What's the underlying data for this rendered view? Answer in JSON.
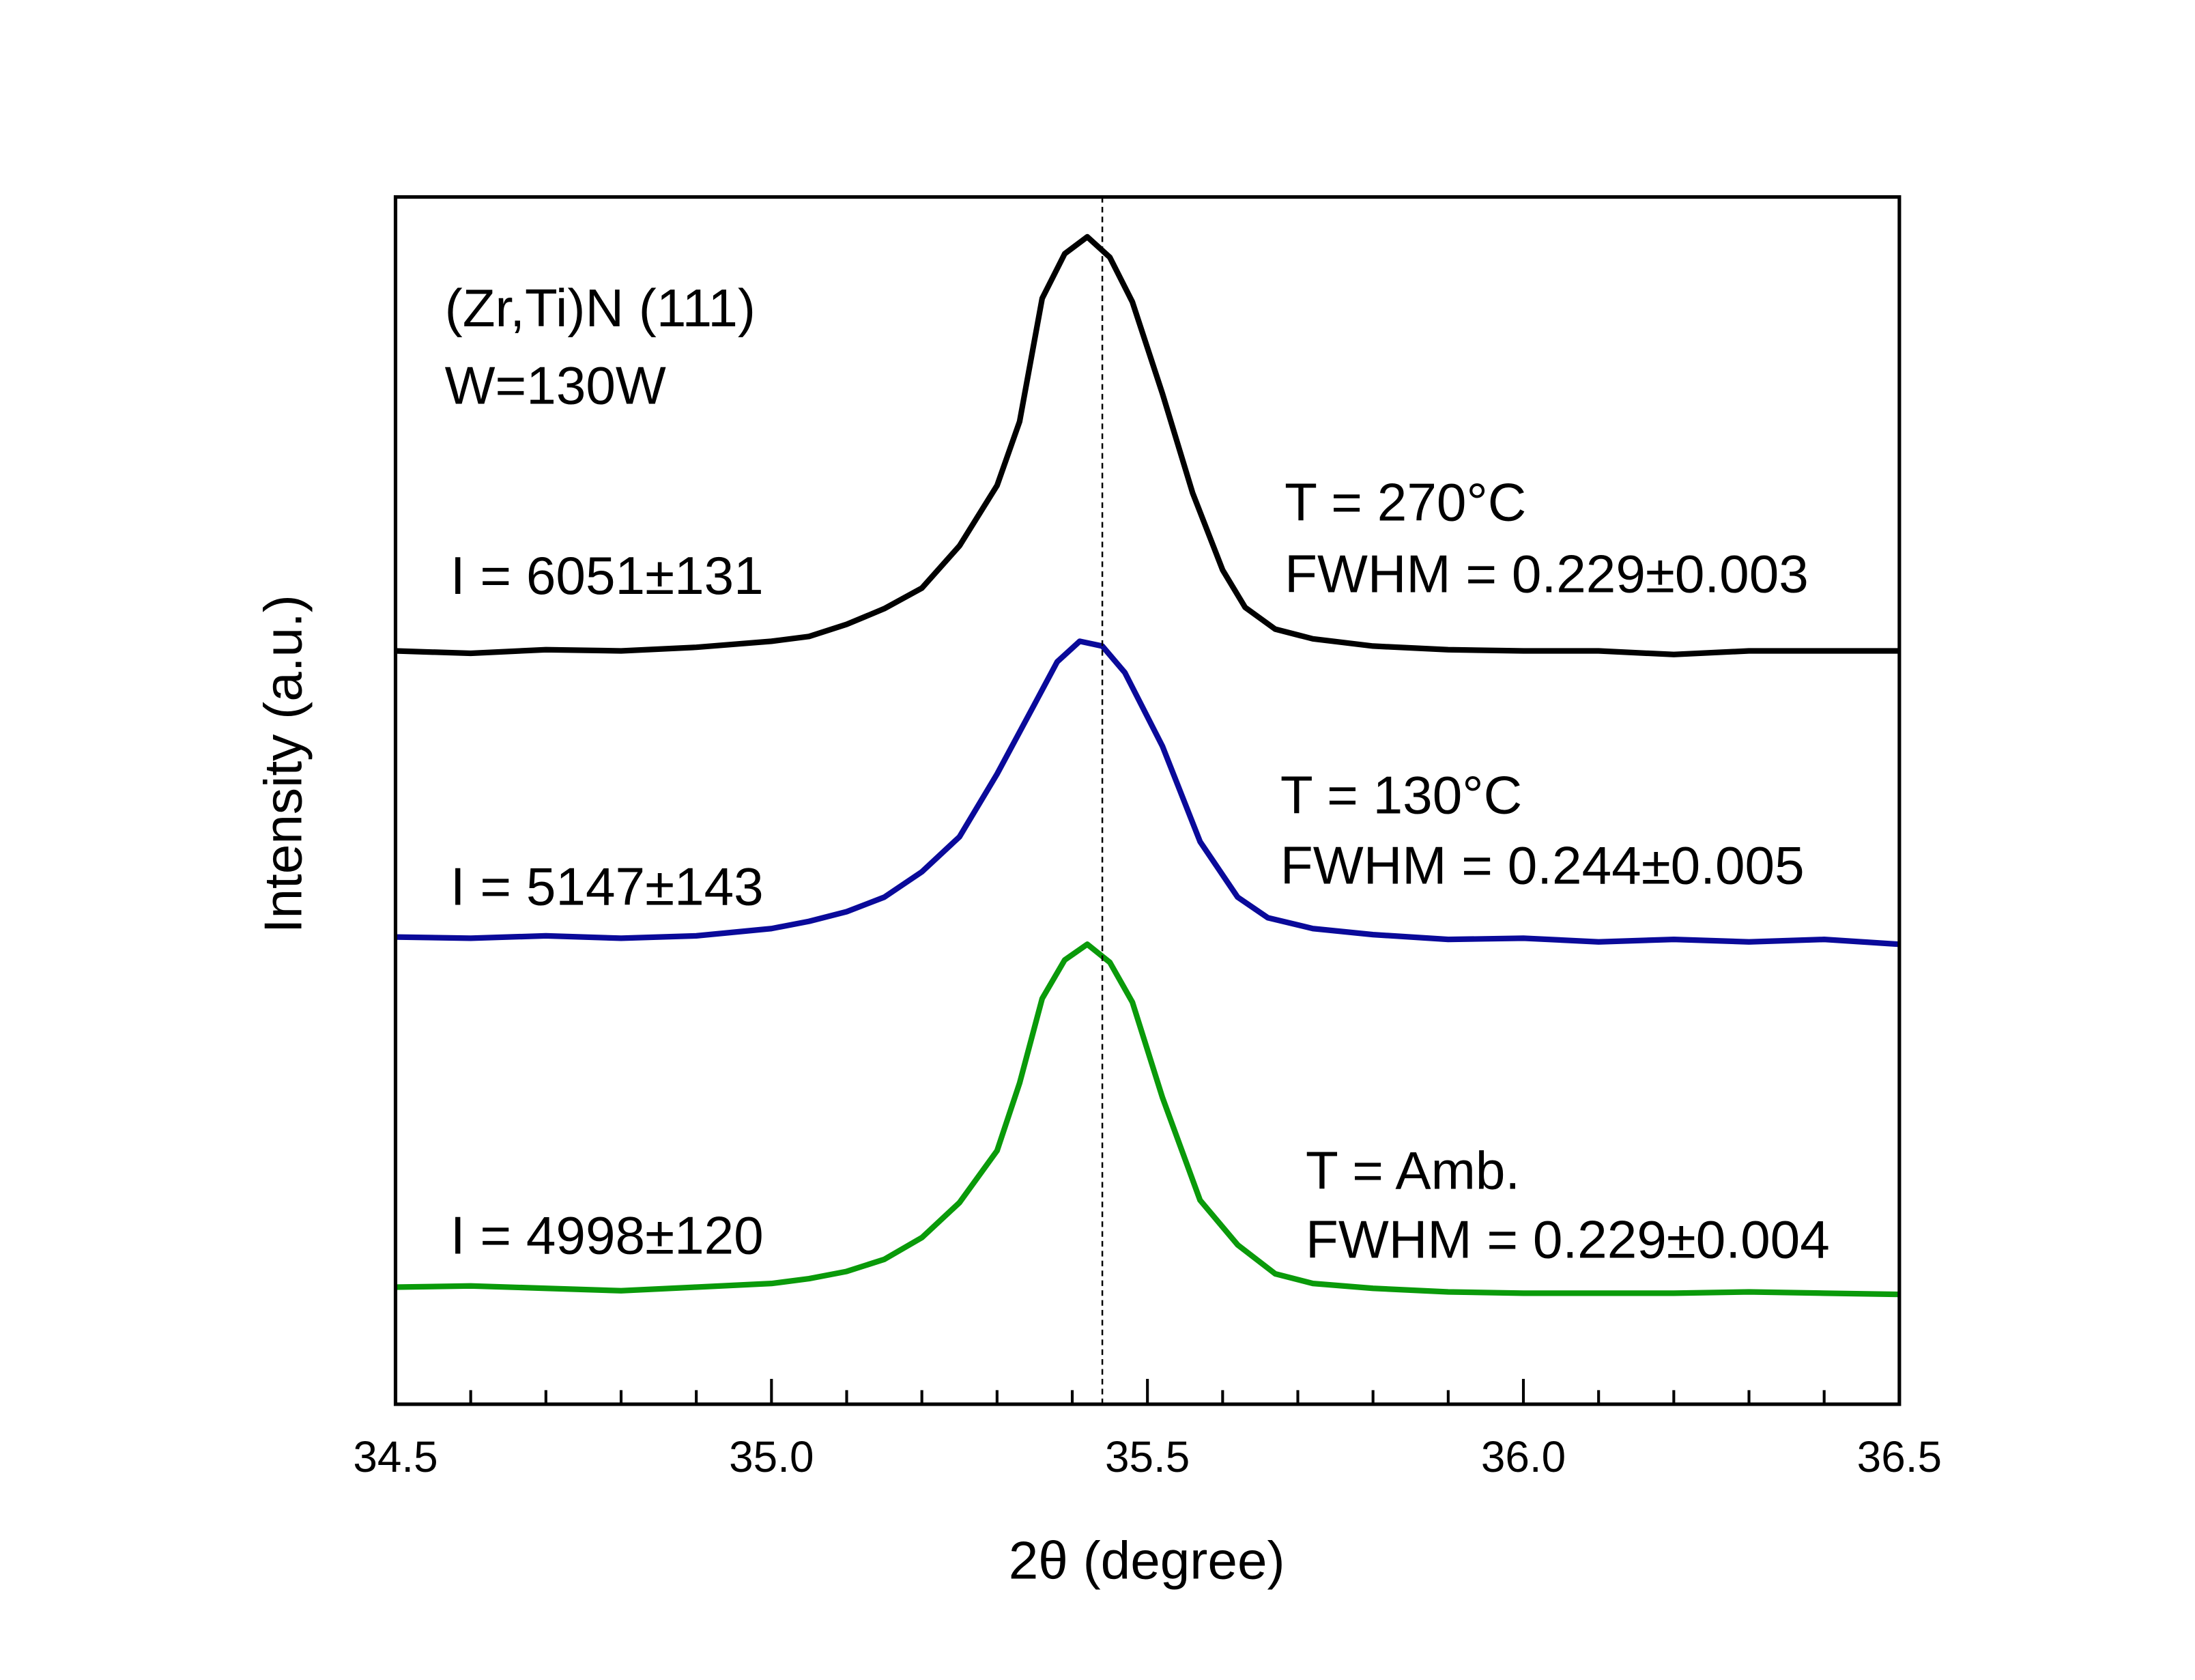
{
  "chart_data": {
    "type": "line",
    "title": "",
    "xlabel": "2θ (degree)",
    "ylabel": "Intensity (a.u.)",
    "xlim": [
      34.5,
      36.5
    ],
    "ylim": [
      0,
      100
    ],
    "xticks": [
      "34.5",
      "35.0",
      "35.5",
      "36.0",
      "36.5"
    ],
    "minor_tick_step": 0.1,
    "reference_line_x": 35.44,
    "grid": false,
    "annotations": {
      "sample": "(Zr,Ti)N (111)",
      "power": "W=130W"
    },
    "series": [
      {
        "name": "T = 270°C",
        "color": "#000000",
        "temp_label": "T = 270°C",
        "fwhm_label": "FWHM = 0.229±0.003",
        "intensity_label": "I = 6051±131",
        "x": [
          34.5,
          34.6,
          34.7,
          34.8,
          34.9,
          35.0,
          35.05,
          35.1,
          35.15,
          35.2,
          35.25,
          35.3,
          35.33,
          35.36,
          35.39,
          35.42,
          35.45,
          35.48,
          35.52,
          35.56,
          35.6,
          35.63,
          35.67,
          35.72,
          35.8,
          35.9,
          36.0,
          36.1,
          36.2,
          36.3,
          36.4,
          36.5
        ],
        "y": [
          62.4,
          62.2,
          62.5,
          62.4,
          62.7,
          63.2,
          63.6,
          64.6,
          65.9,
          67.6,
          71.1,
          76.1,
          81.4,
          91.6,
          95.3,
          96.7,
          95.0,
          91.3,
          83.7,
          75.5,
          69.1,
          66.0,
          64.2,
          63.4,
          62.8,
          62.5,
          62.4,
          62.4,
          62.1,
          62.4,
          62.4,
          62.4
        ]
      },
      {
        "name": "T = 130°C",
        "color": "#0a0a9a",
        "temp_label": "T = 130°C",
        "fwhm_label": "FWHM = 0.244±0.005",
        "intensity_label": "I = 5147±143",
        "x": [
          34.5,
          34.6,
          34.7,
          34.8,
          34.9,
          35.0,
          35.05,
          35.1,
          35.15,
          35.2,
          35.25,
          35.3,
          35.35,
          35.38,
          35.41,
          35.44,
          35.47,
          35.52,
          35.57,
          35.62,
          35.66,
          35.72,
          35.8,
          35.9,
          36.0,
          36.1,
          36.2,
          36.3,
          36.4,
          36.5
        ],
        "y": [
          38.7,
          38.6,
          38.8,
          38.6,
          38.8,
          39.4,
          40.0,
          40.8,
          42.0,
          44.1,
          47.0,
          52.2,
          58.0,
          61.5,
          63.2,
          62.8,
          60.6,
          54.5,
          46.6,
          42.0,
          40.3,
          39.4,
          38.9,
          38.5,
          38.6,
          38.3,
          38.5,
          38.3,
          38.5,
          38.1
        ]
      },
      {
        "name": "T = Amb.",
        "color": "#0a9a0a",
        "temp_label": "T = Amb.",
        "fwhm_label": "FWHM = 0.229±0.004",
        "intensity_label": "I = 4998±120",
        "x": [
          34.5,
          34.6,
          34.7,
          34.8,
          34.9,
          35.0,
          35.05,
          35.1,
          35.15,
          35.2,
          35.25,
          35.3,
          35.33,
          35.36,
          35.39,
          35.42,
          35.45,
          35.48,
          35.52,
          35.57,
          35.62,
          35.67,
          35.72,
          35.8,
          35.9,
          36.0,
          36.2,
          36.3,
          36.4,
          36.5
        ],
        "y": [
          9.7,
          9.8,
          9.6,
          9.4,
          9.7,
          10.0,
          10.4,
          11.0,
          12.0,
          13.8,
          16.7,
          21.0,
          26.6,
          33.6,
          36.8,
          38.1,
          36.6,
          33.3,
          25.4,
          16.9,
          13.2,
          10.8,
          10.0,
          9.6,
          9.3,
          9.2,
          9.2,
          9.3,
          9.2,
          9.1
        ]
      }
    ]
  }
}
